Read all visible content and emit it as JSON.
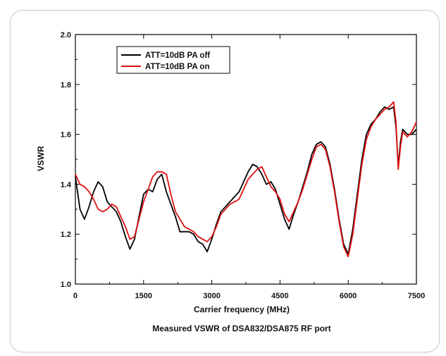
{
  "chart_data": {
    "type": "line",
    "xlabel": "Carrier frequency (MHz)",
    "ylabel": "VSWR",
    "caption": "Measured VSWR of DSA832/DSA875 RF port",
    "xlim": [
      0,
      7500
    ],
    "ylim": [
      1.0,
      2.0
    ],
    "xticks": [
      0,
      1500,
      3000,
      4500,
      6000,
      7500
    ],
    "yticks": [
      "1.0",
      "1.2",
      "1.4",
      "1.6",
      "1.8",
      "2.0"
    ],
    "legend_position": "top-left",
    "grid": false,
    "series": [
      {
        "name": "ATT=10dB PA off",
        "color": "#000000",
        "x": [
          0,
          100,
          200,
          300,
          400,
          500,
          600,
          700,
          800,
          900,
          1000,
          1100,
          1200,
          1300,
          1400,
          1500,
          1600,
          1700,
          1800,
          1900,
          2000,
          2100,
          2200,
          2300,
          2400,
          2500,
          2600,
          2700,
          2800,
          2900,
          3000,
          3100,
          3200,
          3300,
          3400,
          3500,
          3600,
          3700,
          3800,
          3900,
          4000,
          4100,
          4200,
          4300,
          4400,
          4500,
          4600,
          4700,
          4800,
          4900,
          5000,
          5100,
          5200,
          5300,
          5400,
          5500,
          5600,
          5700,
          5800,
          5900,
          6000,
          6100,
          6200,
          6300,
          6400,
          6500,
          6600,
          6700,
          6800,
          6900,
          7000,
          7050,
          7100,
          7150,
          7200,
          7300,
          7400,
          7500
        ],
        "values": [
          1.43,
          1.3,
          1.26,
          1.31,
          1.37,
          1.41,
          1.39,
          1.33,
          1.31,
          1.29,
          1.25,
          1.19,
          1.14,
          1.18,
          1.27,
          1.36,
          1.38,
          1.37,
          1.42,
          1.44,
          1.37,
          1.32,
          1.27,
          1.21,
          1.21,
          1.21,
          1.2,
          1.17,
          1.16,
          1.13,
          1.18,
          1.24,
          1.29,
          1.31,
          1.33,
          1.35,
          1.37,
          1.41,
          1.45,
          1.48,
          1.47,
          1.44,
          1.4,
          1.41,
          1.38,
          1.32,
          1.26,
          1.22,
          1.28,
          1.33,
          1.39,
          1.45,
          1.52,
          1.56,
          1.57,
          1.55,
          1.48,
          1.38,
          1.26,
          1.16,
          1.12,
          1.22,
          1.36,
          1.5,
          1.6,
          1.64,
          1.66,
          1.69,
          1.71,
          1.7,
          1.71,
          1.63,
          1.47,
          1.57,
          1.62,
          1.6,
          1.6,
          1.62
        ]
      },
      {
        "name": "ATT=10dB PA on",
        "color": "#e01010",
        "x": [
          0,
          100,
          200,
          300,
          400,
          500,
          600,
          700,
          800,
          900,
          1000,
          1100,
          1200,
          1300,
          1400,
          1500,
          1600,
          1700,
          1800,
          1900,
          2000,
          2100,
          2200,
          2300,
          2400,
          2500,
          2600,
          2700,
          2800,
          2900,
          3000,
          3100,
          3200,
          3300,
          3400,
          3500,
          3600,
          3700,
          3800,
          3900,
          4000,
          4100,
          4200,
          4300,
          4400,
          4500,
          4600,
          4700,
          4800,
          4900,
          5000,
          5100,
          5200,
          5300,
          5400,
          5500,
          5600,
          5700,
          5800,
          5900,
          6000,
          6100,
          6200,
          6300,
          6400,
          6500,
          6600,
          6700,
          6800,
          6900,
          7000,
          7050,
          7100,
          7150,
          7200,
          7300,
          7400,
          7500
        ],
        "values": [
          1.44,
          1.4,
          1.39,
          1.37,
          1.34,
          1.3,
          1.29,
          1.3,
          1.32,
          1.31,
          1.27,
          1.23,
          1.18,
          1.19,
          1.26,
          1.33,
          1.38,
          1.43,
          1.45,
          1.45,
          1.44,
          1.36,
          1.29,
          1.26,
          1.23,
          1.22,
          1.21,
          1.19,
          1.18,
          1.17,
          1.19,
          1.23,
          1.28,
          1.3,
          1.32,
          1.33,
          1.34,
          1.38,
          1.42,
          1.44,
          1.46,
          1.47,
          1.43,
          1.39,
          1.37,
          1.34,
          1.28,
          1.25,
          1.29,
          1.33,
          1.38,
          1.44,
          1.5,
          1.55,
          1.56,
          1.54,
          1.47,
          1.37,
          1.25,
          1.15,
          1.11,
          1.2,
          1.34,
          1.48,
          1.58,
          1.63,
          1.66,
          1.68,
          1.7,
          1.71,
          1.73,
          1.65,
          1.46,
          1.55,
          1.61,
          1.59,
          1.61,
          1.65
        ]
      }
    ]
  }
}
